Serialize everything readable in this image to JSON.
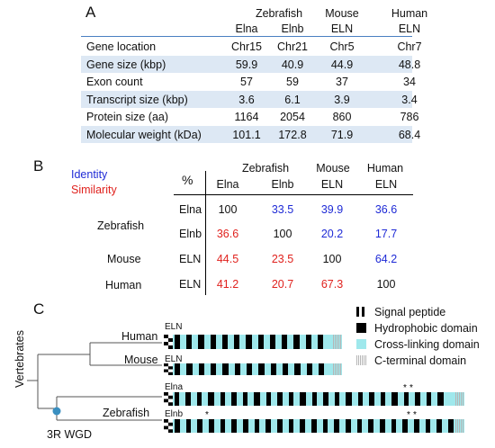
{
  "panelA": {
    "letter": "A",
    "group_headers": [
      "Zebrafish",
      "Mouse",
      "Human"
    ],
    "col_headers": [
      "Elna",
      "Elnb",
      "ELN",
      "ELN"
    ],
    "rows": [
      {
        "label": "Gene location",
        "values": [
          "Chr15",
          "Chr21",
          "Chr5",
          "Chr7"
        ]
      },
      {
        "label": "Gene size (kbp)",
        "values": [
          "59.9",
          "40.9",
          "44.9",
          "48.8"
        ]
      },
      {
        "label": "Exon count",
        "values": [
          "57",
          "59",
          "37",
          "34"
        ]
      },
      {
        "label": "Transcript size (kbp)",
        "values": [
          "3.6",
          "6.1",
          "3.9",
          "3.4"
        ]
      },
      {
        "label": "Protein size (aa)",
        "values": [
          "1164",
          "2054",
          "860",
          "786"
        ]
      },
      {
        "label": "Molecular weight (kDa)",
        "values": [
          "101.1",
          "172.8",
          "71.9",
          "68.4"
        ]
      }
    ]
  },
  "panelB": {
    "letter": "B",
    "identity_label": "Identity",
    "similarity_label": "Similarity",
    "percent_label": "%",
    "group_headers": [
      "Zebrafish",
      "Mouse",
      "Human"
    ],
    "col_headers": [
      "Elna",
      "Elnb",
      "ELN",
      "ELN"
    ],
    "species": [
      "Zebrafish",
      "Mouse",
      "Human"
    ],
    "rows": [
      {
        "gene": "Elna",
        "values": [
          "100",
          "33.5",
          "39.9",
          "36.6"
        ],
        "colors": [
          "k",
          "b",
          "b",
          "b"
        ]
      },
      {
        "gene": "Elnb",
        "values": [
          "36.6",
          "100",
          "20.2",
          "17.7"
        ],
        "colors": [
          "r",
          "k",
          "b",
          "b"
        ]
      },
      {
        "gene": "ELN",
        "values": [
          "44.5",
          "23.5",
          "100",
          "64.2"
        ],
        "colors": [
          "r",
          "r",
          "k",
          "b"
        ]
      },
      {
        "gene": "ELN",
        "values": [
          "41.2",
          "20.7",
          "67.3",
          "100"
        ],
        "colors": [
          "r",
          "r",
          "r",
          "k"
        ]
      }
    ]
  },
  "panelC": {
    "letter": "C",
    "axis_label": "Vertebrates",
    "wgd_label": "3R WGD",
    "species": [
      "Human",
      "Mouse",
      "Zebrafish"
    ],
    "track_labels": [
      "ELN",
      "ELN",
      "Elna",
      "Elnb"
    ],
    "asterisk": "*",
    "legend": [
      {
        "label": "Signal peptide",
        "key": "signal"
      },
      {
        "label": "Hydrophobic domain",
        "key": "hydrophobic"
      },
      {
        "label": "Cross-linking domain",
        "key": "crosslink"
      },
      {
        "label": "C-terminal domain",
        "key": "cterm"
      }
    ],
    "colors": {
      "hydrophobic": "#000000",
      "crosslink": "#9fe8ec",
      "cterm": "#b5b5b5",
      "node": "#3a8fc0"
    }
  }
}
